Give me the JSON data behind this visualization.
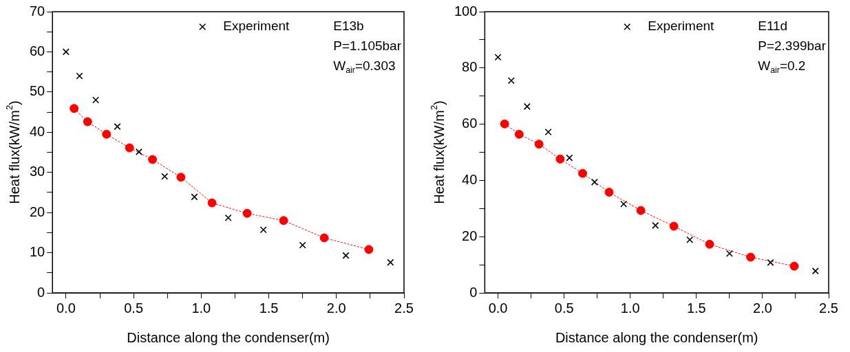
{
  "chart_data": [
    {
      "type": "scatter",
      "xlabel": "Distance along the condenser(m)",
      "ylabel": "Heat flux(kW/m$^{2}$)",
      "xlim": [
        -0.1,
        2.5
      ],
      "xticks": [
        {
          "value": 0,
          "label": "0.0"
        },
        {
          "value": 0.25,
          "label": null
        },
        0.5,
        {
          "value": 0.75,
          "label": null
        },
        {
          "value": 1,
          "label": "1.0"
        },
        {
          "value": 1.25,
          "label": null
        },
        1.5,
        {
          "value": 1.75,
          "label": null
        },
        {
          "value": 2,
          "label": "2.0"
        },
        {
          "value": 2.25,
          "label": null
        },
        2.5
      ],
      "ylim": [
        0,
        70
      ],
      "yticks": [
        0,
        {
          "value": 5,
          "label": null
        },
        10,
        {
          "value": 15,
          "label": null
        },
        20,
        {
          "value": 25,
          "label": null
        },
        30,
        {
          "value": 35,
          "label": null
        },
        40,
        {
          "value": 45,
          "label": null
        },
        50,
        {
          "value": 55,
          "label": null
        },
        60,
        {
          "value": 65,
          "label": null
        },
        70
      ],
      "grid": false,
      "legend": "top right",
      "annotations": [
        "E13b",
        "P=1.105bar",
        "W$_{air}$=0.303"
      ],
      "series": [
        {
          "name": "Experiment",
          "type": "scatter",
          "marker": "cross",
          "color": "#000000",
          "x": [
            0.0,
            0.1,
            0.22,
            0.38,
            0.54,
            0.73,
            0.95,
            1.2,
            1.46,
            1.75,
            2.07,
            2.4
          ],
          "values": [
            60,
            54,
            48,
            41.4,
            35.1,
            29,
            23.9,
            18.7,
            15.7,
            11.9,
            9.3,
            7.6
          ]
        },
        {
          "type": "line",
          "marker": "circle",
          "line_style": "dashed",
          "color": "#ff0000",
          "x": [
            0.06,
            0.16,
            0.3,
            0.47,
            0.64,
            0.85,
            1.08,
            1.34,
            1.61,
            1.91,
            2.24
          ],
          "values": [
            45.9,
            42.6,
            39.5,
            36.1,
            33.2,
            28.8,
            22.4,
            19.8,
            18.0,
            13.7,
            10.8
          ]
        }
      ]
    },
    {
      "type": "scatter",
      "xlabel": "Distance along the condenser(m)",
      "ylabel": "Heat flux(kW/m$^{2}$)",
      "xlim": [
        -0.1,
        2.5
      ],
      "xticks": [
        {
          "value": 0,
          "label": "0.0"
        },
        {
          "value": 0.25,
          "label": null
        },
        0.5,
        {
          "value": 0.75,
          "label": null
        },
        {
          "value": 1,
          "label": "1.0"
        },
        {
          "value": 1.25,
          "label": null
        },
        1.5,
        {
          "value": 1.75,
          "label": null
        },
        {
          "value": 2,
          "label": "2.0"
        },
        {
          "value": 2.25,
          "label": null
        },
        2.5
      ],
      "ylim": [
        0,
        100
      ],
      "yticks": [
        0,
        {
          "value": 10,
          "label": null
        },
        20,
        {
          "value": 30,
          "label": null
        },
        40,
        {
          "value": 50,
          "label": null
        },
        60,
        {
          "value": 70,
          "label": null
        },
        80,
        {
          "value": 90,
          "label": null
        },
        100
      ],
      "grid": false,
      "legend": "top right",
      "annotations": [
        "E11d",
        "P=2.399bar",
        "W$_{air}$=0.2"
      ],
      "series": [
        {
          "name": "Experiment",
          "type": "scatter",
          "marker": "cross",
          "color": "#000000",
          "x": [
            0.0,
            0.1,
            0.22,
            0.38,
            0.54,
            0.73,
            0.95,
            1.19,
            1.45,
            1.75,
            2.06,
            2.4
          ],
          "values": [
            83.8,
            75.5,
            66.3,
            57.2,
            48,
            39.4,
            31.6,
            24,
            18.9,
            14,
            10.8,
            7.8
          ]
        },
        {
          "type": "line",
          "marker": "circle",
          "line_style": "dashed",
          "color": "#ff0000",
          "x": [
            0.05,
            0.16,
            0.31,
            0.47,
            0.64,
            0.84,
            1.08,
            1.33,
            1.6,
            1.91,
            2.24
          ],
          "values": [
            60.1,
            56.4,
            52.9,
            47.6,
            42.5,
            35.8,
            29.3,
            23.7,
            17.3,
            12.7,
            9.5
          ]
        }
      ]
    }
  ]
}
